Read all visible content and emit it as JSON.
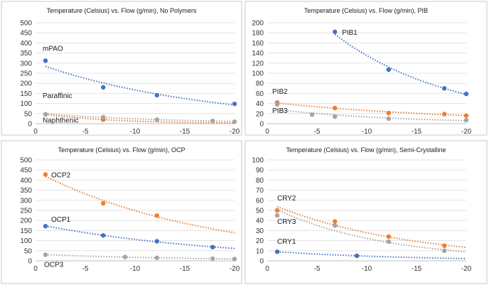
{
  "chart_data": [
    {
      "type": "scatter",
      "title": "Temperature (Celsius) vs. Flow (g/min), No Polymers",
      "xlim": [
        0,
        -20
      ],
      "ylim": [
        0,
        500
      ],
      "xticks": [
        0,
        -5,
        -10,
        -15,
        -20
      ],
      "yticks": [
        0,
        50,
        100,
        150,
        200,
        250,
        300,
        350,
        400,
        450,
        500
      ],
      "grid": true,
      "trendline": "dotted",
      "series": [
        {
          "annotation": "mPAO",
          "color": "#4472c4",
          "x": [
            -1,
            -6.8,
            -12.2,
            -20
          ],
          "y": [
            312,
            180,
            141,
            98
          ]
        },
        {
          "annotation": "Paraffinic",
          "color": "#ed7d31",
          "x": [
            -1,
            -6.8
          ],
          "y": [
            46,
            20
          ]
        },
        {
          "annotation": "Naphthenic",
          "color": "#a5a5a5",
          "x": [
            -1,
            -6.8,
            -12.2,
            -17.8,
            -20
          ],
          "y": [
            47,
            32,
            20,
            14,
            10
          ]
        }
      ]
    },
    {
      "type": "scatter",
      "title": "Temperature (Celsius) vs. Flow (g/min), PIB",
      "xlim": [
        0,
        -20
      ],
      "ylim": [
        0,
        200
      ],
      "xticks": [
        0,
        -5,
        -10,
        -15,
        -20
      ],
      "yticks": [
        0,
        20,
        40,
        60,
        80,
        100,
        120,
        140,
        160,
        180,
        200
      ],
      "grid": true,
      "trendline": "dotted",
      "series": [
        {
          "annotation": "PIB1",
          "color": "#4472c4",
          "x": [
            -6.8,
            -12.2,
            -17.8,
            -20
          ],
          "y": [
            182,
            107,
            70,
            59
          ]
        },
        {
          "annotation": "PIB2",
          "color": "#ed7d31",
          "x": [
            -1,
            -6.8,
            -12.2,
            -17.8,
            -20
          ],
          "y": [
            42,
            31,
            21,
            19,
            16
          ]
        },
        {
          "annotation": "PIB3",
          "color": "#a5a5a5",
          "x": [
            -1,
            -4.5,
            -6.8,
            -12.2,
            -20
          ],
          "y": [
            38,
            18,
            14,
            10,
            7
          ]
        }
      ]
    },
    {
      "type": "scatter",
      "title": "Temperature (Celsius) vs. Flow (g/min), OCP",
      "xlim": [
        0,
        -20
      ],
      "ylim": [
        0,
        500
      ],
      "xticks": [
        0,
        -5,
        -10,
        -15,
        -20
      ],
      "yticks": [
        0,
        50,
        100,
        150,
        200,
        250,
        300,
        350,
        400,
        450,
        500
      ],
      "grid": true,
      "trendline": "dotted",
      "series": [
        {
          "annotation": "OCP2",
          "color": "#ed7d31",
          "x": [
            -1,
            -6.8,
            -12.2
          ],
          "y": [
            428,
            285,
            224
          ]
        },
        {
          "annotation": "OCP1",
          "color": "#4472c4",
          "x": [
            -1,
            -6.8,
            -12.2,
            -17.8
          ],
          "y": [
            172,
            126,
            97,
            68
          ]
        },
        {
          "annotation": "OCP3",
          "color": "#a5a5a5",
          "x": [
            -1,
            -9,
            -12.2,
            -17.8,
            -20
          ],
          "y": [
            30,
            19,
            15,
            11,
            9
          ]
        }
      ]
    },
    {
      "type": "scatter",
      "title": "Temperature (Celsius) vs. Flow (g/min), Semi-Crystalline",
      "xlim": [
        0,
        -20
      ],
      "ylim": [
        0,
        100
      ],
      "xticks": [
        0,
        -5,
        -10,
        -15,
        -20
      ],
      "yticks": [
        0,
        10,
        20,
        30,
        40,
        50,
        60,
        70,
        80,
        90,
        100
      ],
      "grid": true,
      "trendline": "dotted",
      "series": [
        {
          "annotation": "CRY2",
          "color": "#ed7d31",
          "x": [
            -1,
            -6.8,
            -12.2,
            -17.8
          ],
          "y": [
            50,
            39,
            24,
            15
          ]
        },
        {
          "annotation": "CRY3",
          "color": "#a5a5a5",
          "x": [
            -1,
            -6.8,
            -12.2,
            -17.8
          ],
          "y": [
            45,
            35,
            19,
            10
          ]
        },
        {
          "annotation": "CRY1",
          "color": "#4472c4",
          "x": [
            -1,
            -9
          ],
          "y": [
            9,
            5
          ]
        }
      ]
    }
  ]
}
